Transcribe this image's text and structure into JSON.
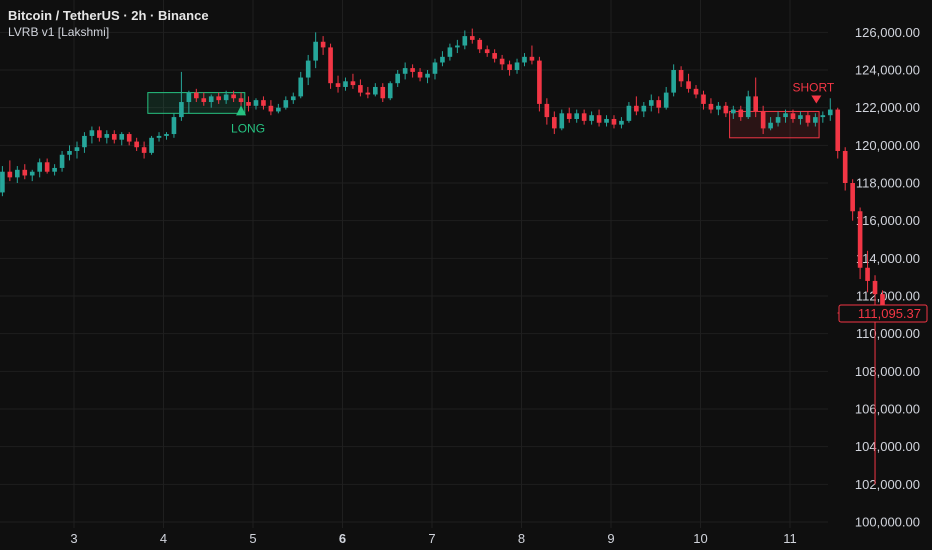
{
  "header": {
    "title": "Bitcoin / TetherUS · 2h · Binance",
    "indicator": "LVRB v1 [Lakshmi]"
  },
  "colors": {
    "background": "#0f0f0f",
    "grid": "#1f1f1f",
    "up": "#26a69a",
    "down": "#f23645",
    "long_box": "#26c281",
    "short_box": "#f23645",
    "text": "#d1d4dc"
  },
  "chart_data": {
    "type": "candlestick",
    "symbol": "Bitcoin / TetherUS",
    "interval": "2h",
    "exchange": "Binance",
    "indicator": "LVRB v1 [Lakshmi]",
    "grid": true,
    "price_scale": "right",
    "x_tick_labels": [
      "3",
      "4",
      "5",
      "6",
      "7",
      "8",
      "9",
      "10",
      "11"
    ],
    "x_tick_bold": [
      "6"
    ],
    "y_ticks": [
      100000,
      102000,
      104000,
      106000,
      108000,
      110000,
      112000,
      114000,
      116000,
      118000,
      120000,
      122000,
      124000,
      126000
    ],
    "y_tick_labels": [
      "100,000.00",
      "102,000.00",
      "104,000.00",
      "106,000.00",
      "108,000.00",
      "110,000.00",
      "112,000.00",
      "114,000.00",
      "116,000.00",
      "118,000.00",
      "120,000.00",
      "122,000.00",
      "124,000.00",
      "126,000.00"
    ],
    "ylim": [
      99800,
      127000
    ],
    "candles_per_day": 12,
    "first_candle_day_offset": -0.8,
    "candles": [
      [
        117500,
        118900,
        117300,
        118600
      ],
      [
        118600,
        119200,
        118100,
        118300
      ],
      [
        118300,
        118900,
        118000,
        118700
      ],
      [
        118700,
        119000,
        118200,
        118400
      ],
      [
        118400,
        118700,
        118100,
        118600
      ],
      [
        118600,
        119300,
        118300,
        119100
      ],
      [
        119100,
        119300,
        118500,
        118600
      ],
      [
        118600,
        119000,
        118400,
        118800
      ],
      [
        118800,
        119700,
        118600,
        119500
      ],
      [
        119500,
        120000,
        119200,
        119700
      ],
      [
        119700,
        120200,
        119300,
        119900
      ],
      [
        119900,
        120700,
        119600,
        120500
      ],
      [
        120500,
        121000,
        120100,
        120800
      ],
      [
        120800,
        121000,
        120200,
        120400
      ],
      [
        120400,
        120800,
        120100,
        120600
      ],
      [
        120600,
        120800,
        120100,
        120300
      ],
      [
        120300,
        120700,
        120000,
        120600
      ],
      [
        120600,
        120700,
        120000,
        120200
      ],
      [
        120200,
        120400,
        119700,
        119900
      ],
      [
        119900,
        120200,
        119300,
        119600
      ],
      [
        119600,
        120500,
        119500,
        120400
      ],
      [
        120400,
        120700,
        120200,
        120500
      ],
      [
        120500,
        120700,
        120300,
        120600
      ],
      [
        120600,
        121700,
        120400,
        121500
      ],
      [
        121500,
        123900,
        121300,
        122300
      ],
      [
        122300,
        122900,
        121700,
        122800
      ],
      [
        122800,
        123000,
        122300,
        122500
      ],
      [
        122500,
        122800,
        122100,
        122300
      ],
      [
        122300,
        122700,
        122000,
        122600
      ],
      [
        122600,
        122800,
        122200,
        122400
      ],
      [
        122400,
        122900,
        122200,
        122700
      ],
      [
        122700,
        122900,
        122300,
        122500
      ],
      [
        122500,
        122800,
        122100,
        122300
      ],
      [
        122300,
        122600,
        121800,
        122100
      ],
      [
        122100,
        122500,
        121900,
        122400
      ],
      [
        122400,
        122600,
        121900,
        122100
      ],
      [
        122100,
        122400,
        121600,
        121800
      ],
      [
        121800,
        122200,
        121700,
        122000
      ],
      [
        122000,
        122600,
        121900,
        122400
      ],
      [
        122400,
        122800,
        122200,
        122600
      ],
      [
        122600,
        123900,
        122500,
        123600
      ],
      [
        123600,
        124800,
        123200,
        124500
      ],
      [
        124500,
        126000,
        124100,
        125500
      ],
      [
        125500,
        125800,
        124800,
        125200
      ],
      [
        125200,
        125400,
        123000,
        123300
      ],
      [
        123300,
        123700,
        122800,
        123100
      ],
      [
        123100,
        123600,
        122900,
        123400
      ],
      [
        123400,
        123800,
        123000,
        123200
      ],
      [
        123200,
        123500,
        122600,
        122800
      ],
      [
        122800,
        123100,
        122500,
        122700
      ],
      [
        122700,
        123300,
        122600,
        123100
      ],
      [
        123100,
        123300,
        122300,
        122500
      ],
      [
        122500,
        123400,
        122400,
        123300
      ],
      [
        123300,
        124000,
        123100,
        123800
      ],
      [
        123800,
        124400,
        123500,
        124100
      ],
      [
        124100,
        124300,
        123600,
        123900
      ],
      [
        123900,
        124100,
        123400,
        123600
      ],
      [
        123600,
        124000,
        123300,
        123800
      ],
      [
        123800,
        124600,
        123500,
        124400
      ],
      [
        124400,
        125000,
        124200,
        124700
      ],
      [
        124700,
        125400,
        124500,
        125200
      ],
      [
        125200,
        125600,
        124900,
        125300
      ],
      [
        125300,
        126100,
        125100,
        125800
      ],
      [
        125800,
        126200,
        125400,
        125600
      ],
      [
        125600,
        125700,
        124900,
        125100
      ],
      [
        125100,
        125300,
        124700,
        124900
      ],
      [
        124900,
        125100,
        124400,
        124600
      ],
      [
        124600,
        124800,
        124000,
        124300
      ],
      [
        124300,
        124500,
        123700,
        124000
      ],
      [
        124000,
        124600,
        123800,
        124400
      ],
      [
        124400,
        124900,
        124200,
        124700
      ],
      [
        124700,
        125300,
        124300,
        124500
      ],
      [
        124500,
        124700,
        121800,
        122200
      ],
      [
        122200,
        122500,
        121100,
        121500
      ],
      [
        121500,
        121800,
        120600,
        120900
      ],
      [
        120900,
        121900,
        120800,
        121700
      ],
      [
        121700,
        122000,
        121200,
        121400
      ],
      [
        121400,
        121900,
        121200,
        121700
      ],
      [
        121700,
        121900,
        121100,
        121300
      ],
      [
        121300,
        121800,
        121100,
        121600
      ],
      [
        121600,
        121900,
        121000,
        121200
      ],
      [
        121200,
        121600,
        121000,
        121400
      ],
      [
        121400,
        121600,
        120900,
        121100
      ],
      [
        121100,
        121500,
        120900,
        121300
      ],
      [
        121300,
        122300,
        121200,
        122100
      ],
      [
        122100,
        122600,
        121600,
        121800
      ],
      [
        121800,
        122300,
        121500,
        122100
      ],
      [
        122100,
        122700,
        121800,
        122400
      ],
      [
        122400,
        122600,
        121700,
        122000
      ],
      [
        122000,
        123100,
        121900,
        122800
      ],
      [
        122800,
        124300,
        122600,
        124000
      ],
      [
        124000,
        124200,
        123100,
        123400
      ],
      [
        123400,
        123800,
        122800,
        123000
      ],
      [
        123000,
        123200,
        122500,
        122700
      ],
      [
        122700,
        122900,
        121900,
        122200
      ],
      [
        122200,
        122500,
        121700,
        121900
      ],
      [
        121900,
        122300,
        121600,
        122100
      ],
      [
        122100,
        122300,
        121500,
        121700
      ],
      [
        121700,
        122100,
        121400,
        121900
      ],
      [
        121900,
        122100,
        121300,
        121500
      ],
      [
        121500,
        122900,
        121400,
        122600
      ],
      [
        122600,
        123600,
        121500,
        121800
      ],
      [
        121800,
        122100,
        120600,
        120900
      ],
      [
        120900,
        121500,
        120800,
        121200
      ],
      [
        121200,
        121800,
        121000,
        121500
      ],
      [
        121500,
        121900,
        121200,
        121700
      ],
      [
        121700,
        121900,
        121200,
        121400
      ],
      [
        121400,
        121800,
        121100,
        121600
      ],
      [
        121600,
        121800,
        121000,
        121200
      ],
      [
        121200,
        121700,
        121000,
        121500
      ],
      [
        121500,
        121800,
        121200,
        121600
      ],
      [
        121600,
        122500,
        121300,
        121900
      ],
      [
        121900,
        122000,
        119300,
        119700
      ],
      [
        119700,
        119900,
        117600,
        118000
      ],
      [
        118000,
        118200,
        116000,
        116500
      ],
      [
        116500,
        116700,
        112900,
        113500
      ],
      [
        113500,
        114400,
        112200,
        112800
      ],
      [
        112800,
        113100,
        102000,
        112100
      ],
      [
        112100,
        112300,
        110900,
        111100
      ]
    ],
    "annotations": [
      {
        "type": "box",
        "label": "LONG",
        "side": "long",
        "from": 20,
        "to": 32,
        "top": 122800,
        "bottom": 121700
      },
      {
        "type": "box",
        "label": "SHORT",
        "side": "short",
        "from": 98,
        "to": 109,
        "top": 121800,
        "bottom": 120400
      }
    ],
    "last_price": 111095.37,
    "last_price_label": "111,095.37"
  }
}
